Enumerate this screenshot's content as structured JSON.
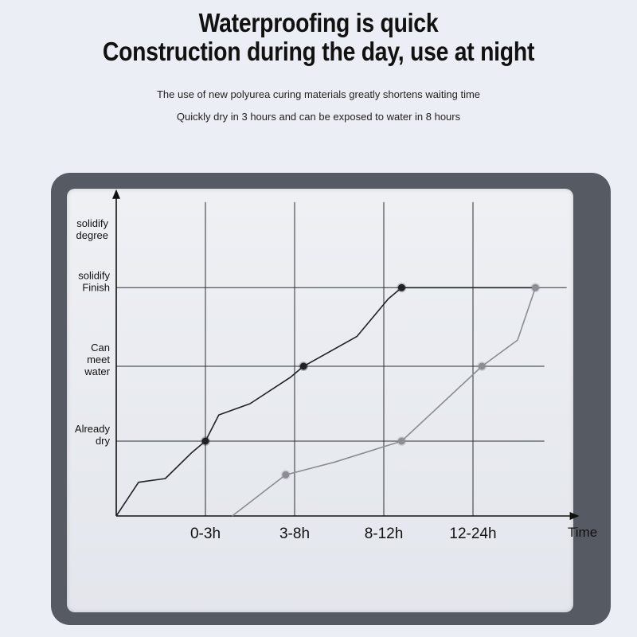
{
  "header": {
    "title_line1": "Waterproofing is quick",
    "title_line2": "Construction during the day, use at night",
    "subtitle_line1": "The use of new polyurea curing materials greatly shortens waiting time",
    "subtitle_line2": "Quickly dry in 3 hours and can be exposed to water in 8 hours"
  },
  "chart_data": {
    "type": "line",
    "xlabel": "Time",
    "ylabel": "solidify degree",
    "x_categories": [
      "0-3h",
      "3-8h",
      "8-12h",
      "12-24h"
    ],
    "y_levels": [
      {
        "label_lines": [
          "Already",
          "dry"
        ],
        "value": 1
      },
      {
        "label_lines": [
          "Can",
          "meet",
          "water"
        ],
        "value": 2
      },
      {
        "label_lines": [
          "solidify",
          "Finish"
        ],
        "value": 3
      }
    ],
    "ylabel_lines": [
      "solidify",
      "degree"
    ],
    "xlim": [
      0,
      4.8
    ],
    "ylim": [
      0,
      4.3
    ],
    "grid": true,
    "series": [
      {
        "color": "#1f2126",
        "points": [
          [
            0,
            0
          ],
          [
            0.25,
            0.45
          ],
          [
            0.55,
            0.5
          ],
          [
            0.85,
            0.85
          ],
          [
            1,
            1
          ],
          [
            1.15,
            1.35
          ],
          [
            1.5,
            1.5
          ],
          [
            1.95,
            1.85
          ],
          [
            2.1,
            2
          ],
          [
            2.7,
            2.4
          ],
          [
            3.05,
            2.9
          ],
          [
            3.2,
            3.05
          ],
          [
            4.7,
            3.05
          ]
        ],
        "markers": [
          [
            1,
            1
          ],
          [
            2.1,
            2
          ],
          [
            3.2,
            3.05
          ]
        ]
      },
      {
        "color": "#8a8d93",
        "points": [
          [
            1.3,
            0
          ],
          [
            1.9,
            0.55
          ],
          [
            2.45,
            0.72
          ],
          [
            3.2,
            1
          ],
          [
            4.1,
            2
          ],
          [
            4.5,
            2.35
          ],
          [
            4.7,
            3.05
          ]
        ],
        "markers": [
          [
            1.9,
            0.55
          ],
          [
            3.2,
            1
          ],
          [
            4.1,
            2
          ],
          [
            4.7,
            3.05
          ]
        ]
      }
    ]
  }
}
